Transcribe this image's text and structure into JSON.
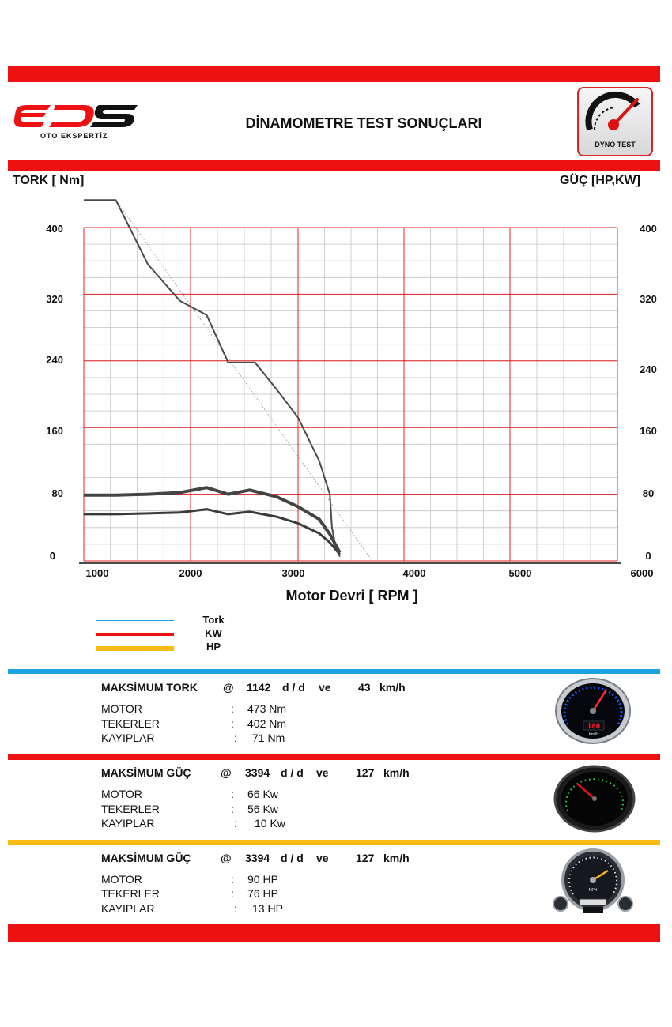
{
  "header": {
    "logo_text": "EDS",
    "logo_subtitle": "OTO EKSPERTİZ",
    "title": "DİNAMOMETRE TEST SONUÇLARI",
    "badge_label": "DYNO TEST"
  },
  "chart_data": {
    "type": "line",
    "ylabel_left": "TORK [ Nm]",
    "ylabel_right": "GÜÇ [HP,KW]",
    "xlabel": "Motor Devri [ RPM ]",
    "xlim": [
      1000,
      6000
    ],
    "ylim": [
      0,
      400
    ],
    "x_ticks": [
      "1000",
      "2000",
      "3000",
      "4000",
      "5000",
      "6000"
    ],
    "y_ticks_left": [
      "400",
      "320",
      "240",
      "160",
      "80",
      "0"
    ],
    "y_ticks_right": [
      "400",
      "320",
      "240",
      "160",
      "80",
      "0"
    ],
    "grid": true,
    "series": [
      {
        "name": "Tork",
        "color": "#4a4a4a",
        "points": [
          [
            1000,
            433
          ],
          [
            1300,
            433
          ],
          [
            1600,
            356
          ],
          [
            1900,
            312
          ],
          [
            2150,
            295
          ],
          [
            2350,
            238
          ],
          [
            2600,
            238
          ],
          [
            2800,
            206
          ],
          [
            3000,
            172
          ],
          [
            3200,
            120
          ],
          [
            3300,
            80
          ],
          [
            3320,
            40
          ],
          [
            3350,
            20
          ],
          [
            3394,
            5
          ]
        ]
      },
      {
        "name": "KW",
        "color": "#3a3a3a",
        "points": [
          [
            1000,
            56
          ],
          [
            1300,
            56
          ],
          [
            1600,
            57
          ],
          [
            1900,
            58
          ],
          [
            2150,
            62
          ],
          [
            2350,
            56
          ],
          [
            2550,
            59
          ],
          [
            2800,
            53
          ],
          [
            3000,
            45
          ],
          [
            3200,
            33
          ],
          [
            3300,
            22
          ],
          [
            3394,
            8
          ]
        ]
      },
      {
        "name": "HP",
        "color": "#444444",
        "points": [
          [
            1000,
            79
          ],
          [
            1300,
            79
          ],
          [
            1600,
            80
          ],
          [
            1900,
            82
          ],
          [
            2150,
            88
          ],
          [
            2350,
            80
          ],
          [
            2550,
            85
          ],
          [
            2800,
            77
          ],
          [
            3000,
            65
          ],
          [
            3200,
            50
          ],
          [
            3300,
            32
          ],
          [
            3394,
            10
          ]
        ]
      }
    ]
  },
  "legend": [
    {
      "label": "Tork",
      "color": "#1aa3e0"
    },
    {
      "label": "KW",
      "color": "#ee1111"
    },
    {
      "label": "HP",
      "color": "#f7bb12"
    }
  ],
  "results": {
    "torque": {
      "title": "MAKSİMUM  TORK",
      "at": "@",
      "rpm": "1142",
      "rpm_unit": "d / d",
      "ve": "ve",
      "speed": "43",
      "speed_unit": "km/h",
      "rows": [
        {
          "label": "MOTOR",
          "colon": ":",
          "value": "473  Nm"
        },
        {
          "label": "TEKERLER",
          "colon": ":",
          "value": "402  Nm"
        },
        {
          "label": "KAYIPLAR",
          "colon": ":",
          "value": "71  Nm"
        }
      ]
    },
    "power_kw": {
      "title": "MAKSİMUM   GÜÇ",
      "at": "@",
      "rpm": "3394",
      "rpm_unit": "d / d",
      "ve": "ve",
      "speed": "127",
      "speed_unit": "km/h",
      "rows": [
        {
          "label": "MOTOR",
          "colon": ":",
          "value": "66  Kw"
        },
        {
          "label": "TEKERLER",
          "colon": ":",
          "value": "56  Kw"
        },
        {
          "label": "KAYIPLAR",
          "colon": ":",
          "value": "10  Kw"
        }
      ]
    },
    "power_hp": {
      "title": "MAKSİMUM   GÜÇ",
      "at": "@",
      "rpm": "3394",
      "rpm_unit": "d / d",
      "ve": "ve",
      "speed": "127",
      "speed_unit": "km/h",
      "rows": [
        {
          "label": "MOTOR",
          "colon": ":",
          "value": "90  HP"
        },
        {
          "label": "TEKERLER",
          "colon": ":",
          "value": "76  HP"
        },
        {
          "label": "KAYIPLAR",
          "colon": ":",
          "value": "13  HP"
        }
      ]
    }
  },
  "gauges": {
    "speedometer_display": "180",
    "speedometer_unit": "km/h",
    "mph_label": "MPH"
  }
}
